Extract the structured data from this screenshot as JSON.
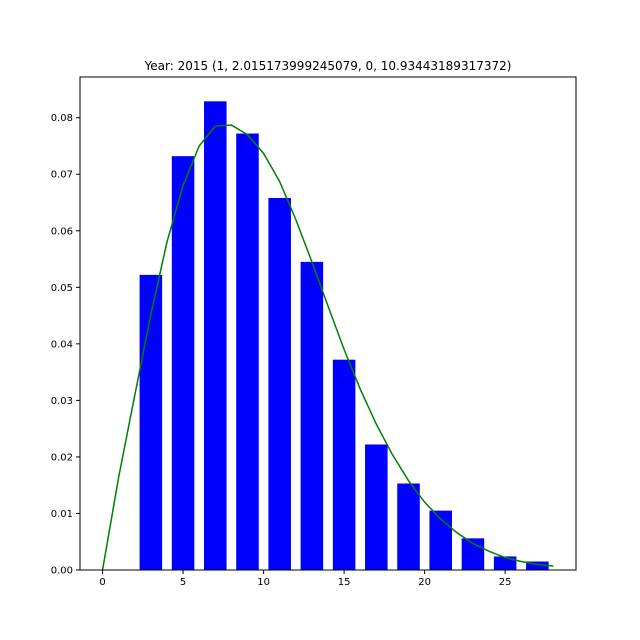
{
  "chart_data": {
    "type": "bar",
    "title": "Year: 2015  (1, 2.015173999245079, 0, 10.93443189317372)",
    "xlabel": "",
    "ylabel": "",
    "xlim": [
      -1.4,
      29.4
    ],
    "ylim": [
      0,
      0.0872
    ],
    "xticks": [
      0,
      5,
      10,
      15,
      20,
      25
    ],
    "yticks": [
      0.0,
      0.01,
      0.02,
      0.03,
      0.04,
      0.05,
      0.06,
      0.07,
      0.08
    ],
    "ytick_labels": [
      "0.00",
      "0.01",
      "0.02",
      "0.03",
      "0.04",
      "0.05",
      "0.06",
      "0.07",
      "0.08"
    ],
    "bar_width": 1.4,
    "bar_color": "#0000ff",
    "x": [
      3,
      5,
      7,
      9,
      11,
      13,
      15,
      17,
      19,
      21,
      23,
      25,
      27
    ],
    "values": [
      0.0522,
      0.0732,
      0.0829,
      0.0772,
      0.0658,
      0.0545,
      0.0372,
      0.0222,
      0.0153,
      0.0105,
      0.0056,
      0.0024,
      0.0015
    ],
    "curve": {
      "color": "#008000",
      "x": [
        0,
        1,
        2,
        3,
        4,
        5,
        6,
        7,
        8,
        9,
        10,
        11,
        12,
        13,
        14,
        15,
        16,
        17,
        18,
        19,
        20,
        21,
        22,
        23,
        24,
        25,
        26,
        27,
        28
      ],
      "y": [
        0.0,
        0.0164,
        0.0309,
        0.0452,
        0.058,
        0.068,
        0.075,
        0.0785,
        0.0787,
        0.077,
        0.0737,
        0.0687,
        0.062,
        0.0545,
        0.0467,
        0.039,
        0.032,
        0.0258,
        0.0204,
        0.0158,
        0.012,
        0.009,
        0.0066,
        0.0047,
        0.0033,
        0.0022,
        0.0015,
        0.001,
        0.0007
      ]
    }
  }
}
